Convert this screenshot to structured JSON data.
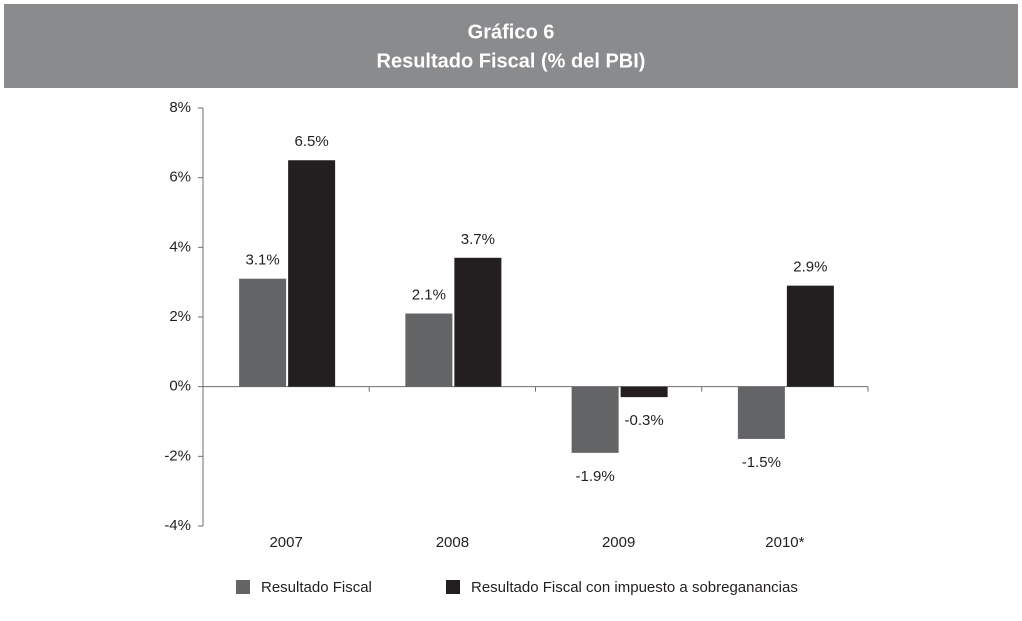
{
  "chart_data": {
    "type": "bar",
    "title": "Gráfico 6",
    "subtitle": "Resultado Fiscal (% del PBI)",
    "categories": [
      "2007",
      "2008",
      "2009",
      "2010*"
    ],
    "series": [
      {
        "name": "Resultado Fiscal",
        "color": "#636466",
        "values": [
          3.1,
          2.1,
          -1.9,
          -1.5
        ],
        "value_labels": [
          "3.1%",
          "2.1%",
          "-1.9%",
          "-1.5%"
        ]
      },
      {
        "name": "Resultado Fiscal con impuesto a sobreganancias",
        "color": "#231f20",
        "values": [
          6.5,
          3.7,
          -0.3,
          2.9
        ],
        "value_labels": [
          "6.5%",
          "3.7%",
          "-0.3%",
          "2.9%"
        ]
      }
    ],
    "ylim": [
      -4,
      8
    ],
    "yticks": [
      {
        "value": -4,
        "label": "-4%"
      },
      {
        "value": -2,
        "label": "-2%"
      },
      {
        "value": 0,
        "label": "0%"
      },
      {
        "value": 2,
        "label": "2%"
      },
      {
        "value": 4,
        "label": "4%"
      },
      {
        "value": 6,
        "label": "6%"
      },
      {
        "value": 8,
        "label": "8%"
      }
    ],
    "legend": "bottom"
  }
}
